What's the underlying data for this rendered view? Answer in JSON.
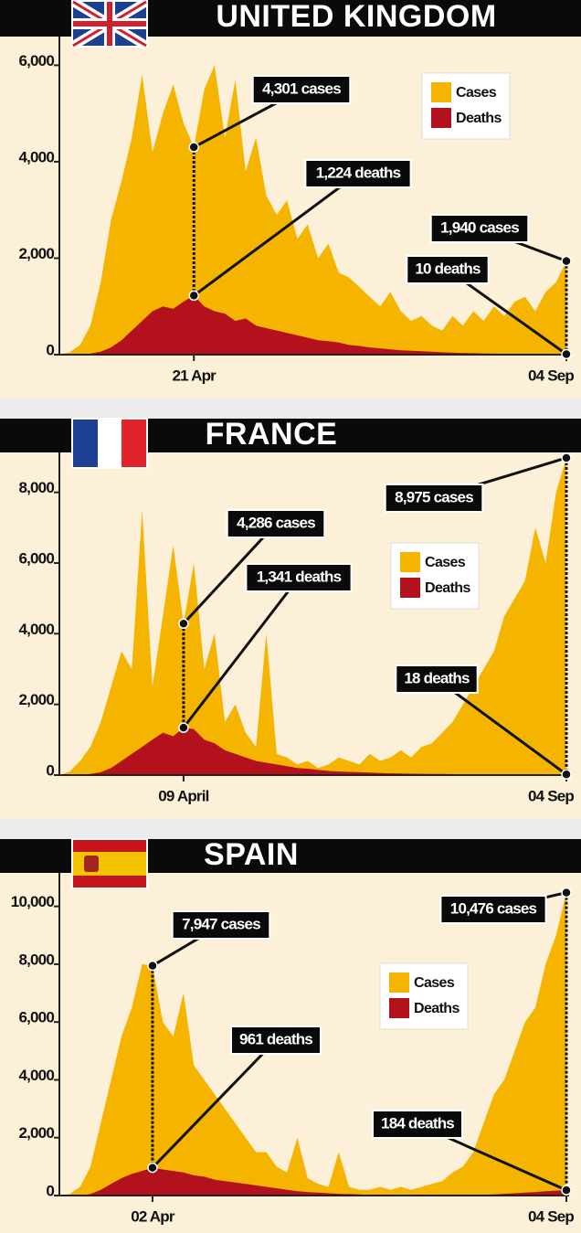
{
  "chart_data": [
    {
      "type": "area",
      "title": "UNITED KINGDOM",
      "categories": [
        null,
        null,
        null,
        null,
        null,
        null,
        null,
        null,
        null,
        null,
        null,
        null,
        null,
        "21 Apr",
        null,
        null,
        null,
        null,
        null,
        null,
        null,
        null,
        null,
        null,
        null,
        null,
        null,
        null,
        null,
        null,
        null,
        null,
        null,
        null,
        null,
        null,
        null,
        null,
        null,
        null,
        null,
        null,
        null,
        null,
        null,
        null,
        null,
        null,
        null,
        "04 Sep"
      ],
      "series": [
        {
          "name": "Cases",
          "color": "#f5b400",
          "values": [
            0,
            50,
            200,
            600,
            1500,
            2800,
            3600,
            4500,
            5800,
            4200,
            5000,
            5600,
            4800,
            4301,
            5500,
            6000,
            4500,
            5700,
            3800,
            4500,
            3300,
            2900,
            3200,
            2400,
            2700,
            2000,
            2300,
            1700,
            1600,
            1400,
            1200,
            1000,
            1300,
            900,
            700,
            800,
            600,
            500,
            800,
            600,
            900,
            700,
            1000,
            800,
            1100,
            1200,
            900,
            1300,
            1500,
            1940
          ],
          "value_labels": [
            null,
            null,
            null,
            null,
            null,
            null,
            null,
            null,
            null,
            null,
            null,
            null,
            null,
            "4,301 cases",
            null,
            null,
            null,
            null,
            null,
            null,
            null,
            null,
            null,
            null,
            null,
            null,
            null,
            null,
            null,
            null,
            null,
            null,
            null,
            null,
            null,
            null,
            null,
            null,
            null,
            null,
            null,
            null,
            null,
            null,
            null,
            null,
            null,
            null,
            null,
            "1,940 cases"
          ]
        },
        {
          "name": "Deaths",
          "color": "#b3121c",
          "values": [
            0,
            0,
            5,
            20,
            60,
            150,
            300,
            500,
            700,
            900,
            1000,
            950,
            1100,
            1224,
            1000,
            900,
            850,
            700,
            750,
            600,
            550,
            500,
            450,
            400,
            350,
            300,
            280,
            250,
            200,
            180,
            150,
            130,
            110,
            90,
            80,
            70,
            60,
            50,
            40,
            35,
            30,
            25,
            20,
            18,
            15,
            14,
            12,
            12,
            11,
            10
          ],
          "value_labels": [
            null,
            null,
            null,
            null,
            null,
            null,
            null,
            null,
            null,
            null,
            null,
            null,
            null,
            "1,224 deaths",
            null,
            null,
            null,
            null,
            null,
            null,
            null,
            null,
            null,
            null,
            null,
            null,
            null,
            null,
            null,
            null,
            null,
            null,
            null,
            null,
            null,
            null,
            null,
            null,
            null,
            null,
            null,
            null,
            null,
            null,
            null,
            null,
            null,
            null,
            null,
            "10 deaths"
          ]
        }
      ],
      "ylim": [
        0,
        6500
      ],
      "yticks": [
        0,
        {
          "value": 2000,
          "label": "2,000"
        },
        {
          "value": 4000,
          "label": "4,000"
        },
        {
          "value": 6000,
          "label": "6,000"
        }
      ],
      "legend": "upper right"
    },
    {
      "type": "area",
      "title": "FRANCE",
      "categories": [
        null,
        null,
        null,
        null,
        null,
        null,
        null,
        null,
        null,
        null,
        null,
        null,
        "09 April",
        null,
        null,
        null,
        null,
        null,
        null,
        null,
        null,
        null,
        null,
        null,
        null,
        null,
        null,
        null,
        null,
        null,
        null,
        null,
        null,
        null,
        null,
        null,
        null,
        null,
        null,
        null,
        null,
        null,
        null,
        null,
        null,
        null,
        null,
        null,
        null,
        "04 Sep"
      ],
      "series": [
        {
          "name": "Cases",
          "color": "#f5b400",
          "values": [
            0,
            100,
            400,
            800,
            1500,
            2500,
            3500,
            3000,
            7500,
            2500,
            4500,
            6500,
            4286,
            6000,
            3000,
            4000,
            1500,
            2000,
            1200,
            800,
            4000,
            600,
            500,
            300,
            400,
            200,
            300,
            500,
            400,
            300,
            600,
            400,
            500,
            700,
            500,
            800,
            900,
            1200,
            1500,
            2000,
            2500,
            3000,
            3500,
            4500,
            5000,
            5500,
            7000,
            6000,
            8000,
            8975
          ],
          "value_labels": [
            null,
            null,
            null,
            null,
            null,
            null,
            null,
            null,
            null,
            null,
            null,
            null,
            "4,286 cases",
            null,
            null,
            null,
            null,
            null,
            null,
            null,
            null,
            null,
            null,
            null,
            null,
            null,
            null,
            null,
            null,
            null,
            null,
            null,
            null,
            null,
            null,
            null,
            null,
            null,
            null,
            null,
            null,
            null,
            null,
            null,
            null,
            null,
            null,
            null,
            null,
            "8,975 cases"
          ]
        },
        {
          "name": "Deaths",
          "color": "#b3121c",
          "values": [
            0,
            0,
            10,
            30,
            80,
            200,
            400,
            600,
            800,
            1000,
            1200,
            1100,
            1341,
            1300,
            1000,
            900,
            700,
            600,
            500,
            400,
            350,
            300,
            250,
            200,
            180,
            150,
            120,
            100,
            90,
            80,
            70,
            60,
            50,
            45,
            40,
            35,
            30,
            30,
            25,
            25,
            20,
            20,
            20,
            18,
            18,
            20,
            18,
            20,
            18,
            18
          ],
          "value_labels": [
            null,
            null,
            null,
            null,
            null,
            null,
            null,
            null,
            null,
            null,
            null,
            null,
            "1,341 deaths",
            null,
            null,
            null,
            null,
            null,
            null,
            null,
            null,
            null,
            null,
            null,
            null,
            null,
            null,
            null,
            null,
            null,
            null,
            null,
            null,
            null,
            null,
            null,
            null,
            null,
            null,
            null,
            null,
            null,
            null,
            null,
            null,
            null,
            null,
            null,
            null,
            "18 deaths"
          ]
        }
      ],
      "ylim": [
        0,
        9000
      ],
      "yticks": [
        0,
        {
          "value": 2000,
          "label": "2,000"
        },
        {
          "value": 4000,
          "label": "4,000"
        },
        {
          "value": 6000,
          "label": "6,000"
        },
        {
          "value": 8000,
          "label": "8,000"
        }
      ],
      "legend": "center right"
    },
    {
      "type": "area",
      "title": "SPAIN",
      "categories": [
        null,
        null,
        null,
        null,
        null,
        null,
        null,
        null,
        null,
        "02 Apr",
        null,
        null,
        null,
        null,
        null,
        null,
        null,
        null,
        null,
        null,
        null,
        null,
        null,
        null,
        null,
        null,
        null,
        null,
        null,
        null,
        null,
        null,
        null,
        null,
        null,
        null,
        null,
        null,
        null,
        null,
        null,
        null,
        null,
        null,
        null,
        null,
        null,
        null,
        null,
        "04 Sep"
      ],
      "series": [
        {
          "name": "Cases",
          "color": "#f5b400",
          "values": [
            0,
            50,
            300,
            1000,
            2500,
            4000,
            5500,
            6500,
            8000,
            7947,
            6000,
            5500,
            7000,
            4500,
            4000,
            3500,
            3000,
            2500,
            2000,
            1500,
            1500,
            1000,
            800,
            2000,
            600,
            400,
            300,
            1500,
            300,
            200,
            200,
            300,
            200,
            300,
            200,
            300,
            400,
            500,
            800,
            1000,
            1500,
            2500,
            3500,
            4000,
            5000,
            6000,
            6500,
            8000,
            9000,
            10476
          ],
          "value_labels": [
            null,
            null,
            null,
            null,
            null,
            null,
            null,
            null,
            null,
            "7,947 cases",
            null,
            null,
            null,
            null,
            null,
            null,
            null,
            null,
            null,
            null,
            null,
            null,
            null,
            null,
            null,
            null,
            null,
            null,
            null,
            null,
            null,
            null,
            null,
            null,
            null,
            null,
            null,
            null,
            null,
            null,
            null,
            null,
            null,
            null,
            null,
            null,
            null,
            null,
            null,
            "10,476 cases"
          ]
        },
        {
          "name": "Deaths",
          "color": "#b3121c",
          "values": [
            0,
            0,
            10,
            50,
            200,
            400,
            600,
            750,
            850,
            961,
            900,
            850,
            800,
            700,
            650,
            550,
            500,
            450,
            400,
            350,
            300,
            250,
            200,
            150,
            120,
            100,
            80,
            60,
            50,
            40,
            10,
            5,
            5,
            5,
            5,
            5,
            5,
            10,
            10,
            15,
            20,
            30,
            40,
            60,
            80,
            100,
            120,
            150,
            170,
            184
          ],
          "value_labels": [
            null,
            null,
            null,
            null,
            null,
            null,
            null,
            null,
            null,
            "961 deaths",
            null,
            null,
            null,
            null,
            null,
            null,
            null,
            null,
            null,
            null,
            null,
            null,
            null,
            null,
            null,
            null,
            null,
            null,
            null,
            null,
            null,
            null,
            null,
            null,
            null,
            null,
            null,
            null,
            null,
            null,
            null,
            null,
            null,
            null,
            null,
            null,
            null,
            null,
            null,
            "184 deaths"
          ]
        }
      ],
      "ylim": [
        0,
        11000
      ],
      "yticks": [
        0,
        {
          "value": 2000,
          "label": "2,000"
        },
        {
          "value": 4000,
          "label": "4,000"
        },
        {
          "value": 6000,
          "label": "6,000"
        },
        {
          "value": 8000,
          "label": "8,000"
        },
        {
          "value": 10000,
          "label": "10,000"
        }
      ],
      "legend": "center"
    }
  ]
}
